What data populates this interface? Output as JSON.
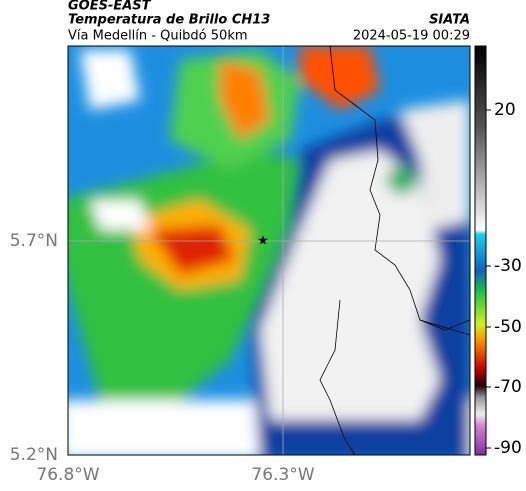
{
  "header": {
    "source": "GOES-EAST",
    "title": "Temperatura de Brillo CH13",
    "subtitle": "Vía Medellín - Quibdó 50km",
    "agency": "SIATA",
    "datetime": "2024-05-19 00:29"
  },
  "axes": {
    "y_labels": [
      "5.7°N",
      "5.2°N"
    ],
    "x_labels": [
      "76.8°W",
      "76.3°W"
    ]
  },
  "colorbar": {
    "ticks": [
      "20",
      "-30",
      "-50",
      "-70",
      "-90"
    ]
  }
}
